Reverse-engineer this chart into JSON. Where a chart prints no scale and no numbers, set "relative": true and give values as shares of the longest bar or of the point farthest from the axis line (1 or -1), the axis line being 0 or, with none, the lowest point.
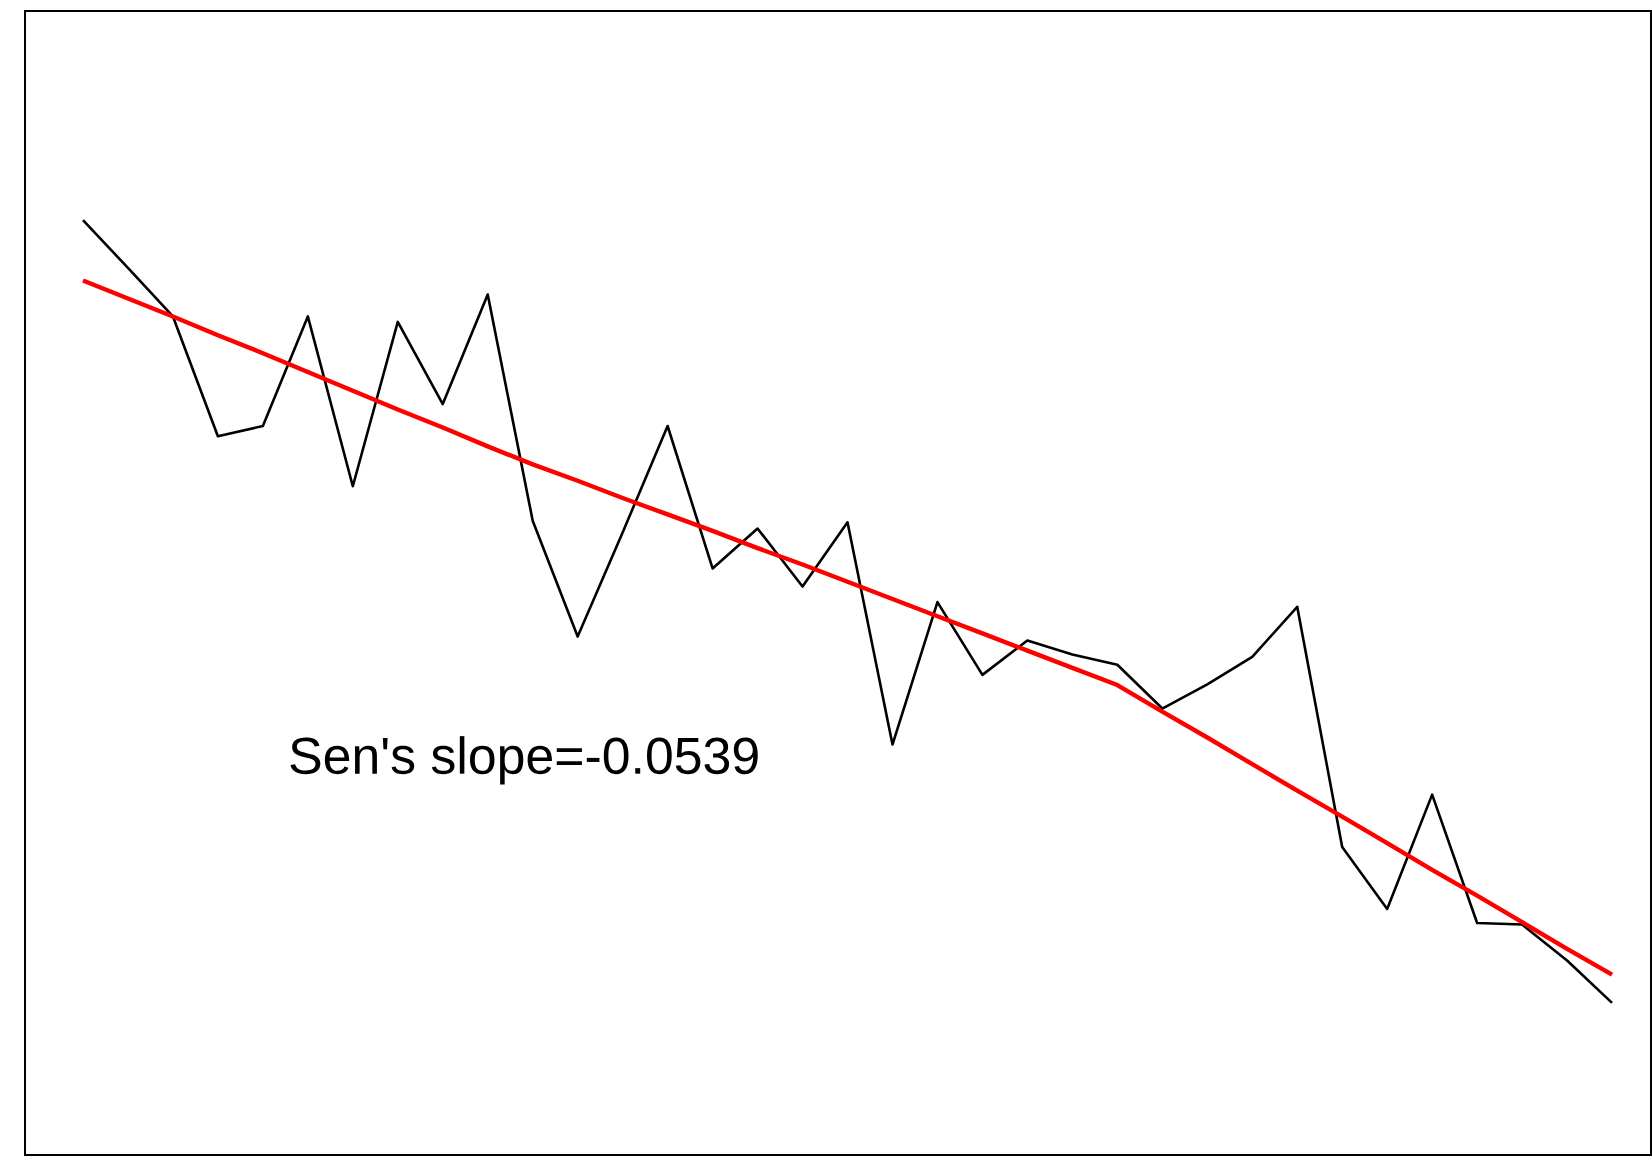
{
  "chart_data": {
    "type": "line",
    "relative": true,
    "categories": [
      null,
      null,
      null,
      null,
      null,
      null,
      null,
      null,
      null,
      null,
      null,
      null,
      null,
      null,
      null,
      null,
      null,
      null,
      null,
      null,
      null,
      null,
      null,
      null,
      null,
      null,
      null,
      null,
      null,
      null,
      null,
      null,
      null,
      null,
      null
    ],
    "tick_labels": false,
    "marker": "none",
    "series": [
      {
        "color": "#000000",
        "values": [
          1.0,
          0.939,
          0.877,
          0.724,
          0.737,
          0.877,
          0.66,
          0.87,
          0.765,
          0.905,
          0.616,
          0.468,
          0.601,
          0.737,
          0.555,
          0.606,
          0.532,
          0.614,
          0.33,
          0.512,
          0.419,
          0.463,
          0.445,
          0.432,
          0.376,
          0.407,
          0.442,
          0.506,
          0.199,
          0.12,
          0.266,
          0.102,
          0.1,
          0.054,
          0.0
        ]
      },
      {
        "type": "line",
        "color": "#ff0000",
        "values": [
          0.923,
          0.9,
          0.877,
          0.853,
          0.83,
          0.806,
          0.782,
          0.758,
          0.735,
          0.711,
          0.688,
          0.667,
          0.645,
          0.624,
          0.603,
          0.581,
          0.56,
          0.538,
          0.516,
          0.494,
          0.472,
          0.45,
          0.428,
          0.406,
          0.372,
          0.339,
          0.305,
          0.271,
          0.238,
          0.204,
          0.17,
          0.137,
          0.103,
          0.069,
          0.036
        ]
      }
    ],
    "annotations": [
      "Sen's slope=-0.0539"
    ]
  }
}
